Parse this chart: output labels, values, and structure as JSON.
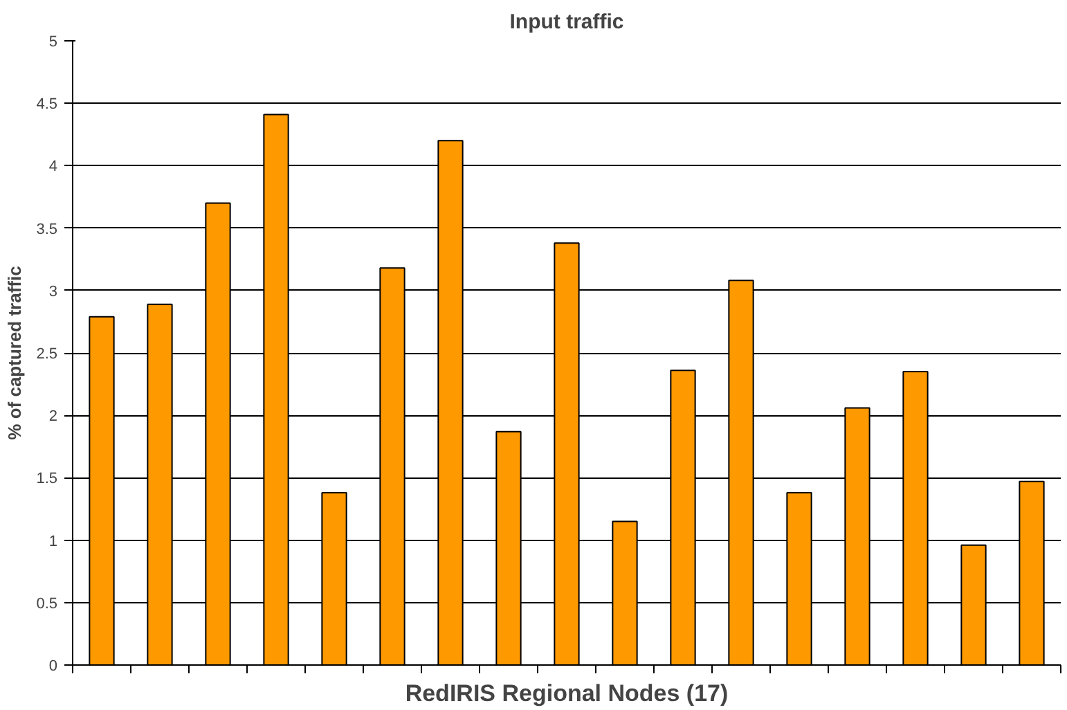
{
  "chart_data": {
    "type": "bar",
    "title": "Input traffic",
    "xlabel": "RedIRIS Regional Nodes (17)",
    "ylabel": "% of captured traffic",
    "categories": [
      null,
      null,
      null,
      null,
      null,
      null,
      null,
      null,
      null,
      null,
      null,
      null,
      null,
      null,
      null,
      null,
      null
    ],
    "values": [
      2.79,
      2.89,
      3.7,
      4.41,
      1.38,
      3.18,
      4.2,
      1.87,
      3.38,
      1.15,
      2.36,
      3.08,
      1.38,
      2.06,
      2.35,
      0.96,
      1.47
    ],
    "color": "#ff9900",
    "ylim": [
      0,
      5
    ],
    "yticks": [
      0,
      0.5,
      1,
      1.5,
      2,
      2.5,
      3,
      3.5,
      4,
      4.5,
      5
    ],
    "grid": "y"
  }
}
